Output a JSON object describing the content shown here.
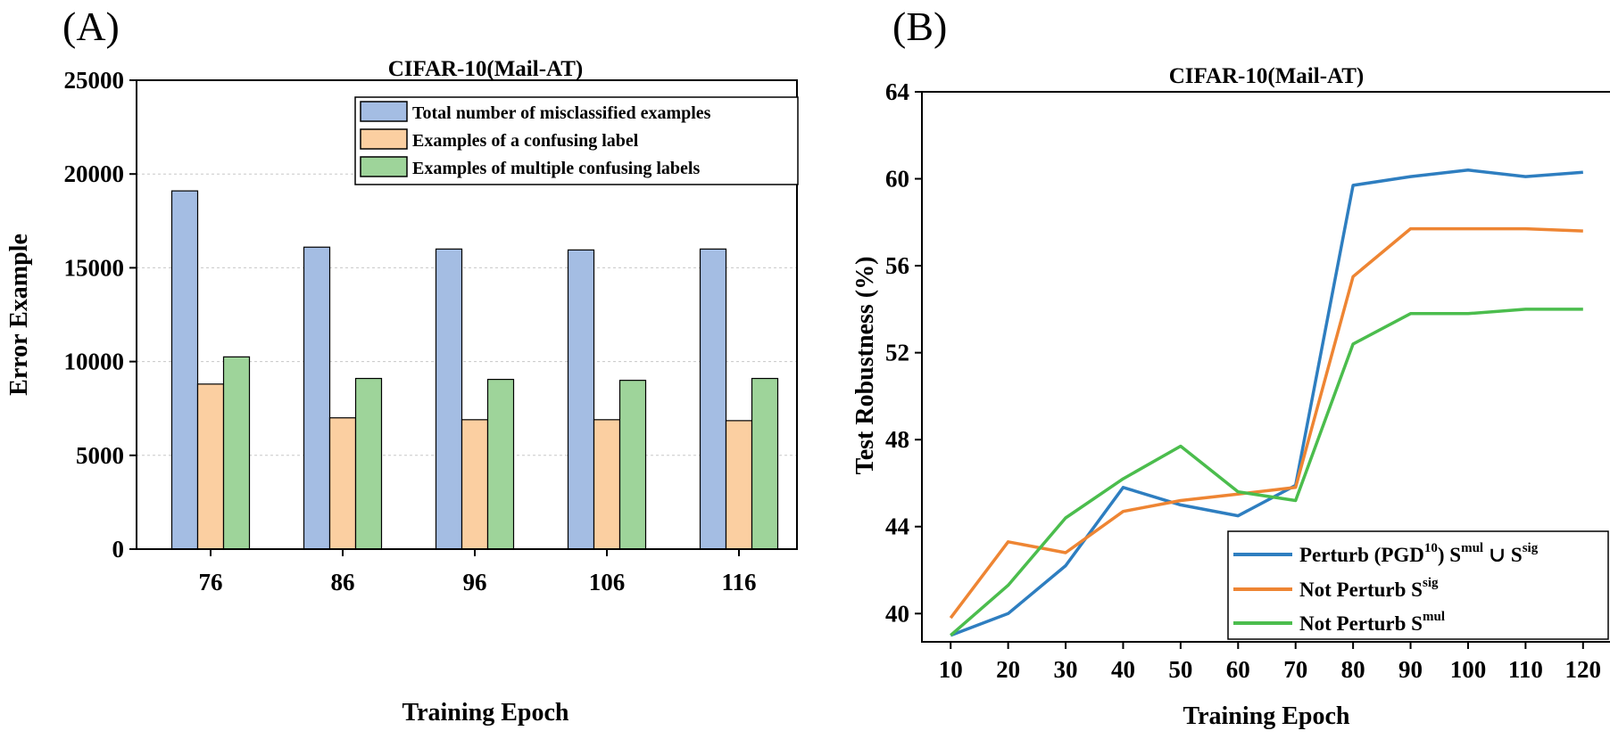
{
  "panels": {
    "a_label": "(A)",
    "b_label": "(B)"
  },
  "chart_data": [
    {
      "type": "bar",
      "title": "CIFAR-10(Mail-AT)",
      "xlabel": "Training Epoch",
      "ylabel": "Error Example",
      "categories": [
        "76",
        "86",
        "96",
        "106",
        "116"
      ],
      "ylim": [
        0,
        25000
      ],
      "yticks": [
        "0",
        "5000",
        "10000",
        "15000",
        "20000",
        "25000"
      ],
      "grid": true,
      "legend_position": "top-right",
      "series": [
        {
          "name": "Total number of misclassified examples",
          "color": "#a4bde3",
          "values": [
            19100,
            16100,
            16000,
            15950,
            16000
          ]
        },
        {
          "name": "Examples of a confusing label",
          "color": "#fbcfa1",
          "values": [
            8800,
            7000,
            6900,
            6900,
            6850
          ]
        },
        {
          "name": "Examples of multiple confusing labels",
          "color": "#9ed49a",
          "values": [
            10250,
            9100,
            9050,
            9000,
            9100
          ]
        }
      ]
    },
    {
      "type": "line",
      "title": "CIFAR-10(Mail-AT)",
      "xlabel": "Training Epoch",
      "ylabel": "Test Robustness (%)",
      "x": [
        10,
        20,
        30,
        40,
        50,
        60,
        70,
        80,
        90,
        100,
        110,
        120
      ],
      "xticks": [
        "10",
        "20",
        "30",
        "40",
        "50",
        "60",
        "70",
        "80",
        "90",
        "100",
        "110",
        "120"
      ],
      "ylim": [
        38.7,
        64
      ],
      "yticks": [
        "40",
        "44",
        "48",
        "52",
        "56",
        "60",
        "64"
      ],
      "grid": false,
      "legend_position": "bottom-right",
      "series": [
        {
          "legend_main": "Perturb (PGD",
          "legend_sup1": "10",
          "legend_mid": ") S",
          "legend_sup2": "mul",
          "legend_union": " ∪  S",
          "legend_sup3": "sig",
          "color": "#2e7ec0",
          "values": [
            39.0,
            40.0,
            42.2,
            45.8,
            45.0,
            44.5,
            45.9,
            59.7,
            60.1,
            60.4,
            60.1,
            60.3
          ]
        },
        {
          "legend_main": "Not Perturb S",
          "legend_sup1": "sig",
          "color": "#ee8533",
          "values": [
            39.8,
            43.3,
            42.8,
            44.7,
            45.2,
            45.5,
            45.8,
            55.5,
            57.7,
            57.7,
            57.7,
            57.6
          ]
        },
        {
          "legend_main": "Not Perturb S",
          "legend_sup1": "mul",
          "color": "#4bbd4d",
          "values": [
            39.0,
            41.3,
            44.4,
            46.2,
            47.7,
            45.6,
            45.2,
            52.4,
            53.8,
            53.8,
            54.0,
            54.0
          ]
        }
      ]
    }
  ]
}
